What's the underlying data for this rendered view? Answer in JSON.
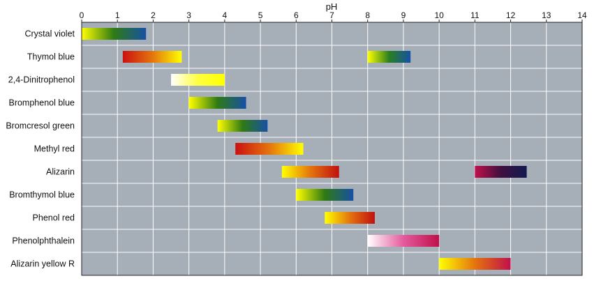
{
  "chart_data": {
    "type": "bar",
    "xlabel": "pH",
    "xlim": [
      0,
      14
    ],
    "x_ticks": [
      "0",
      "1",
      "2",
      "3",
      "4",
      "5",
      "6",
      "7",
      "8",
      "9",
      "10",
      "11",
      "12",
      "13",
      "14"
    ],
    "grid": true,
    "background_color": "#a6aeb8",
    "grid_color": "#ffffff",
    "indicators": [
      {
        "name": "Crystal violet",
        "ranges": [
          {
            "start": 0.0,
            "end": 1.8,
            "colors": [
              "#ffff00",
              "#2f7a14",
              "#1650a6"
            ]
          }
        ]
      },
      {
        "name": "Thymol blue",
        "ranges": [
          {
            "start": 1.15,
            "end": 2.8,
            "colors": [
              "#cc1010",
              "#e4740e",
              "#ffff00"
            ]
          },
          {
            "start": 8.0,
            "end": 9.2,
            "colors": [
              "#ffff00",
              "#2a8020",
              "#1650a6"
            ]
          }
        ]
      },
      {
        "name": "2,4-Dinitrophenol",
        "ranges": [
          {
            "start": 2.5,
            "end": 4.0,
            "colors": [
              "#ffffff",
              "#ffff40",
              "#ffff00"
            ]
          }
        ]
      },
      {
        "name": "Bromphenol blue",
        "ranges": [
          {
            "start": 3.0,
            "end": 4.6,
            "colors": [
              "#ffff00",
              "#2f7a14",
              "#1650a6"
            ]
          }
        ]
      },
      {
        "name": "Bromcresol green",
        "ranges": [
          {
            "start": 3.8,
            "end": 5.2,
            "colors": [
              "#ffff00",
              "#2f7a14",
              "#1650a6"
            ]
          }
        ]
      },
      {
        "name": "Methyl red",
        "ranges": [
          {
            "start": 4.3,
            "end": 6.2,
            "colors": [
              "#cc1010",
              "#e4740e",
              "#ffff00"
            ]
          }
        ]
      },
      {
        "name": "Alizarin",
        "ranges": [
          {
            "start": 5.6,
            "end": 7.2,
            "colors": [
              "#ffff00",
              "#e4740e",
              "#c01010"
            ]
          },
          {
            "start": 11.0,
            "end": 12.45,
            "colors": [
              "#c0104a",
              "#401040",
              "#101a50"
            ]
          }
        ]
      },
      {
        "name": "Bromthymol blue",
        "ranges": [
          {
            "start": 6.0,
            "end": 7.6,
            "colors": [
              "#ffff00",
              "#2f7a14",
              "#1650a6"
            ]
          }
        ]
      },
      {
        "name": "Phenol red",
        "ranges": [
          {
            "start": 6.8,
            "end": 8.2,
            "colors": [
              "#ffff00",
              "#e4740e",
              "#c01010"
            ]
          }
        ]
      },
      {
        "name": "Phenolphthalein",
        "ranges": [
          {
            "start": 8.0,
            "end": 10.0,
            "colors": [
              "#ffffff",
              "#e45a9e",
              "#c0104a"
            ]
          }
        ]
      },
      {
        "name": "Alizarin yellow R",
        "ranges": [
          {
            "start": 10.0,
            "end": 12.0,
            "colors": [
              "#ffff00",
              "#e4740e",
              "#c0104a"
            ]
          }
        ]
      }
    ]
  }
}
